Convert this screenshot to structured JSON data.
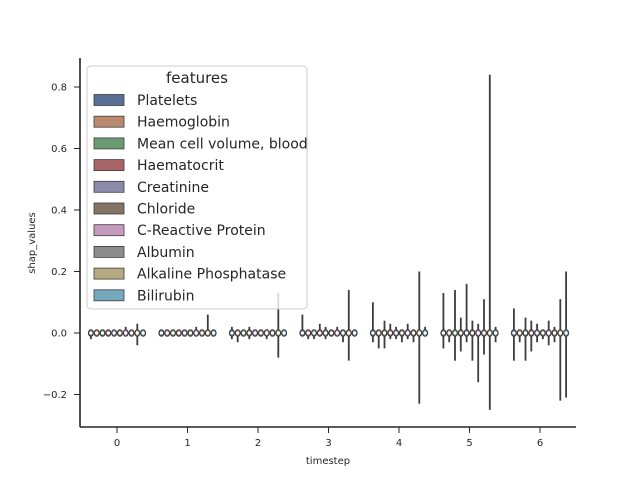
{
  "chart_data": {
    "type": "violin",
    "title": "",
    "xlabel": "timestep",
    "ylabel": "shap_values",
    "categories": [
      "0",
      "1",
      "2",
      "3",
      "4",
      "5",
      "6"
    ],
    "yticks": [
      -0.2,
      0.0,
      0.2,
      0.4,
      0.6,
      0.8
    ],
    "ytick_labels": [
      "−0.2",
      "0.0",
      "0.2",
      "0.4",
      "0.6",
      "0.8"
    ],
    "ylim": [
      -0.31,
      0.89
    ],
    "grid": false,
    "legend": {
      "title": "features",
      "placement": "top-left"
    },
    "series": [
      {
        "name": "Platelets",
        "color": "#5a6f96",
        "min": [
          -0.02,
          -0.01,
          -0.02,
          -0.01,
          -0.03,
          -0.05,
          -0.09
        ],
        "max": [
          0.01,
          0.01,
          0.02,
          0.06,
          0.1,
          0.13,
          0.08
        ]
      },
      {
        "name": "Haemoglobin",
        "color": "#b98a6e",
        "min": [
          -0.01,
          -0.01,
          -0.03,
          -0.02,
          -0.05,
          -0.03,
          -0.03
        ],
        "max": [
          0.01,
          0.01,
          0.01,
          0.01,
          0.01,
          0.01,
          0.01
        ]
      },
      {
        "name": "Mean cell volume, blood",
        "color": "#6a9a72",
        "min": [
          -0.01,
          -0.01,
          -0.01,
          -0.02,
          -0.05,
          -0.09,
          -0.09
        ],
        "max": [
          0.01,
          0.01,
          0.01,
          0.01,
          0.04,
          0.14,
          0.05
        ]
      },
      {
        "name": "Haematocrit",
        "color": "#a86567",
        "min": [
          -0.01,
          -0.01,
          -0.02,
          -0.01,
          -0.02,
          -0.06,
          -0.06
        ],
        "max": [
          0.01,
          0.01,
          0.02,
          0.03,
          0.03,
          0.05,
          0.04
        ]
      },
      {
        "name": "Creatinine",
        "color": "#8d89a8",
        "min": [
          -0.01,
          -0.01,
          -0.01,
          -0.02,
          -0.02,
          -0.03,
          -0.03
        ],
        "max": [
          0.01,
          0.01,
          0.01,
          0.02,
          0.02,
          0.16,
          0.03
        ]
      },
      {
        "name": "Chloride",
        "color": "#837466",
        "min": [
          -0.01,
          -0.01,
          -0.01,
          -0.01,
          -0.03,
          -0.09,
          -0.02
        ],
        "max": [
          0.01,
          0.01,
          0.01,
          0.01,
          0.01,
          0.04,
          0.01
        ]
      },
      {
        "name": "C-Reactive Protein",
        "color": "#c699be",
        "min": [
          -0.01,
          -0.01,
          -0.02,
          -0.01,
          -0.02,
          -0.16,
          -0.04
        ],
        "max": [
          0.02,
          0.02,
          0.01,
          0.02,
          0.03,
          0.03,
          0.04
        ]
      },
      {
        "name": "Albumin",
        "color": "#8d8d8d",
        "min": [
          -0.01,
          -0.01,
          -0.01,
          -0.03,
          -0.03,
          -0.07,
          -0.03
        ],
        "max": [
          0.01,
          0.01,
          0.01,
          0.01,
          0.01,
          0.11,
          0.02
        ]
      },
      {
        "name": "Alkaline Phosphatase",
        "color": "#b5aa82",
        "min": [
          -0.04,
          -0.01,
          -0.08,
          -0.09,
          -0.23,
          -0.25,
          -0.22
        ],
        "max": [
          0.03,
          0.06,
          0.13,
          0.14,
          0.2,
          0.84,
          0.11
        ]
      },
      {
        "name": "Bilirubin",
        "color": "#76a9bd",
        "min": [
          -0.01,
          -0.01,
          -0.01,
          -0.01,
          -0.01,
          -0.03,
          -0.21
        ],
        "max": [
          0.01,
          0.01,
          0.01,
          0.01,
          0.02,
          0.02,
          0.2
        ]
      }
    ]
  }
}
